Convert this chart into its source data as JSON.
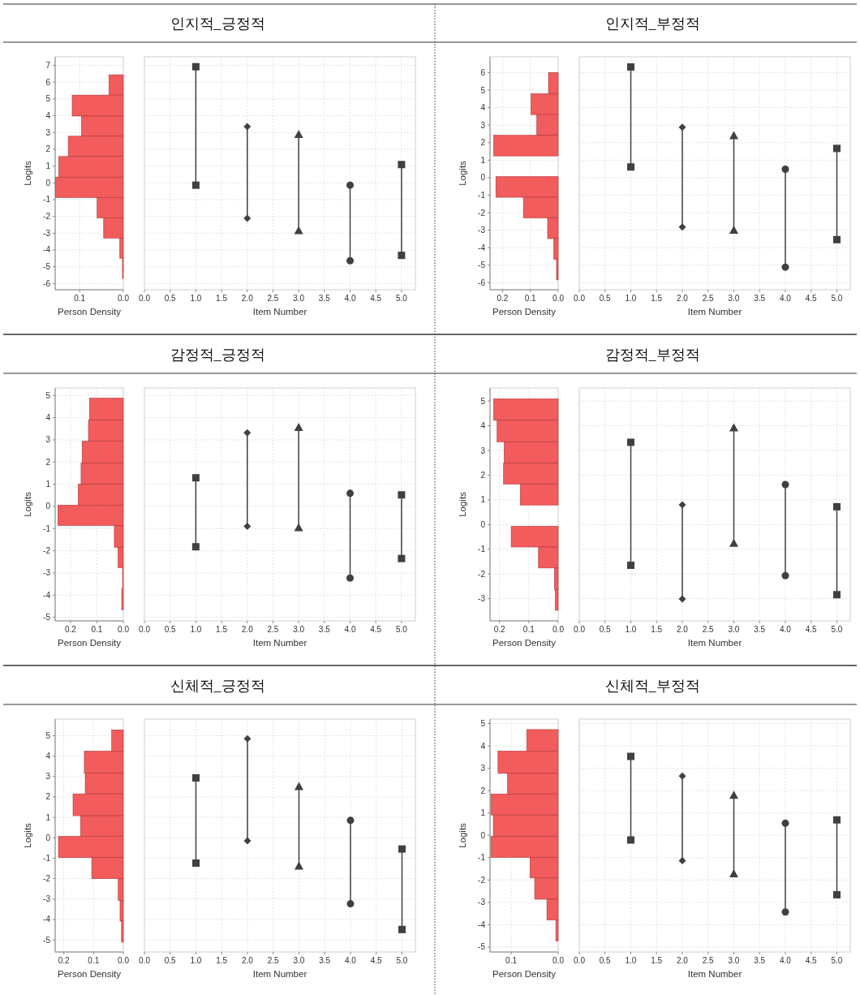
{
  "chart_data": [
    {
      "type": "histogram",
      "orientation": "horizontal",
      "color": "#f25c5c",
      "xlabel": "Person Density",
      "ylabel": "Logits",
      "grid": true,
      "bins": [
        6.44,
        5.23,
        3.98,
        2.78,
        1.57,
        0.34,
        -0.87,
        -2.09,
        -3.29,
        -4.49,
        -5.7
      ],
      "values": [
        0.033,
        0.117,
        0.096,
        0.126,
        0.148,
        0.155,
        0.06,
        0.045,
        0.008,
        0.002
      ],
      "xlim": [
        0.156,
        0
      ],
      "xticks": [
        0.1,
        {
          "value": 0,
          "label": "0.0"
        }
      ],
      "ylim": [
        -6.37,
        7.51
      ],
      "yticks": [
        -6,
        -5,
        -4,
        -3,
        -2,
        -1,
        0,
        1,
        2,
        3,
        4,
        5,
        6,
        7
      ]
    },
    {
      "type": "line",
      "title": "인지적_긍정적",
      "xlabel": "Item Number",
      "grid": true,
      "tick_labels": "x",
      "xlim": [
        0,
        5.27
      ],
      "ylim": [
        -6.37,
        7.51
      ],
      "yticks": [
        -6,
        -5,
        -4,
        -3,
        -2,
        -1,
        0,
        1,
        2,
        3,
        4,
        5,
        6,
        7
      ],
      "xticks": [
        {
          "value": 0,
          "label": "0.0"
        },
        0.5,
        {
          "value": 1,
          "label": "1.0"
        },
        1.5,
        {
          "value": 2,
          "label": "2.0"
        },
        2.5,
        {
          "value": 3,
          "label": "3.0"
        },
        3.5,
        {
          "value": 4,
          "label": "4.0"
        },
        4.5,
        {
          "value": 5,
          "label": "5.0"
        }
      ],
      "series": [
        {
          "color": "#404040",
          "marker": "square",
          "x": [
            1,
            1
          ],
          "values": [
            6.92,
            -0.14
          ]
        },
        {
          "color": "#404040",
          "marker": "diamond",
          "x": [
            2,
            2
          ],
          "values": [
            3.35,
            -2.12
          ]
        },
        {
          "color": "#404040",
          "marker": "triangle",
          "x": [
            3,
            3
          ],
          "values": [
            2.89,
            -2.84
          ]
        },
        {
          "color": "#404040",
          "marker": "circle",
          "x": [
            4,
            4
          ],
          "values": [
            -0.14,
            -4.64
          ]
        },
        {
          "color": "#404040",
          "marker": "square",
          "x": [
            5,
            5
          ],
          "values": [
            1.09,
            -4.32
          ]
        }
      ]
    },
    {
      "type": "histogram",
      "orientation": "horizontal",
      "color": "#f25c5c",
      "xlabel": "Person Density",
      "ylabel": "Logits",
      "grid": true,
      "bins": [
        6.0,
        4.79,
        3.6,
        2.42,
        1.24,
        0.06,
        -1.12,
        -2.3,
        -3.48,
        -4.66,
        -5.84
      ],
      "values": [
        0.035,
        0.098,
        0.077,
        0.232,
        0,
        0.224,
        0.125,
        0.038,
        0.016,
        0.006
      ],
      "xlim": [
        0.245,
        0
      ],
      "xticks": [
        0.2,
        0.1,
        {
          "value": 0,
          "label": "0.0"
        }
      ],
      "ylim": [
        -6.4,
        6.9
      ],
      "yticks": [
        -6,
        -5,
        -4,
        -3,
        -2,
        -1,
        0,
        1,
        2,
        3,
        4,
        5,
        6
      ]
    },
    {
      "type": "line",
      "title": "인지적_부정적",
      "xlabel": "Item Number",
      "grid": true,
      "tick_labels": "x",
      "xlim": [
        0,
        5.26
      ],
      "ylim": [
        -6.4,
        6.9
      ],
      "yticks": [
        -6,
        -5,
        -4,
        -3,
        -2,
        -1,
        0,
        1,
        2,
        3,
        4,
        5,
        6
      ],
      "xticks": [
        {
          "value": 0,
          "label": "0.0"
        },
        0.5,
        {
          "value": 1,
          "label": "1.0"
        },
        1.5,
        {
          "value": 2,
          "label": "2.0"
        },
        2.5,
        {
          "value": 3,
          "label": "3.0"
        },
        3.5,
        {
          "value": 4,
          "label": "4.0"
        },
        4.5,
        {
          "value": 5,
          "label": "5.0"
        }
      ],
      "series": [
        {
          "color": "#404040",
          "marker": "square",
          "x": [
            1,
            1
          ],
          "values": [
            6.32,
            0.61
          ]
        },
        {
          "color": "#404040",
          "marker": "diamond",
          "x": [
            2,
            2
          ],
          "values": [
            2.88,
            -2.82
          ]
        },
        {
          "color": "#404040",
          "marker": "triangle",
          "x": [
            3,
            3
          ],
          "values": [
            2.41,
            -2.99
          ]
        },
        {
          "color": "#404040",
          "marker": "circle",
          "x": [
            4,
            4
          ],
          "values": [
            0.48,
            -5.11
          ]
        },
        {
          "color": "#404040",
          "marker": "square",
          "x": [
            5,
            5
          ],
          "values": [
            1.67,
            -3.54
          ]
        }
      ]
    },
    {
      "type": "histogram",
      "orientation": "horizontal",
      "color": "#f25c5c",
      "xlabel": "Person Density",
      "ylabel": "Logits",
      "grid": true,
      "bins": [
        4.88,
        3.89,
        2.94,
        1.95,
        1.01,
        0.06,
        -0.86,
        -1.84,
        -2.76,
        -3.71,
        -4.66
      ],
      "values": [
        0.128,
        0.132,
        0.156,
        0.16,
        0.171,
        0.248,
        0.034,
        0.02,
        0.003,
        0.006
      ],
      "xlim": [
        0.258,
        0
      ],
      "xticks": [
        0.2,
        0.1,
        {
          "value": 0,
          "label": "0.0"
        }
      ],
      "ylim": [
        -5.16,
        5.34
      ],
      "yticks": [
        -5,
        -4,
        -3,
        -2,
        -1,
        0,
        1,
        2,
        3,
        4,
        5
      ]
    },
    {
      "type": "line",
      "title": "감정적_긍정적",
      "xlabel": "Item Number",
      "grid": true,
      "tick_labels": "x",
      "xlim": [
        0,
        5.27
      ],
      "ylim": [
        -5.16,
        5.34
      ],
      "yticks": [
        -5,
        -4,
        -3,
        -2,
        -1,
        0,
        1,
        2,
        3,
        4,
        5
      ],
      "xticks": [
        {
          "value": 0,
          "label": "0.0"
        },
        0.5,
        {
          "value": 1,
          "label": "1.0"
        },
        1.5,
        {
          "value": 2,
          "label": "2.0"
        },
        2.5,
        {
          "value": 3,
          "label": "3.0"
        },
        3.5,
        {
          "value": 4,
          "label": "4.0"
        },
        4.5,
        {
          "value": 5,
          "label": "5.0"
        }
      ],
      "series": [
        {
          "color": "#404040",
          "marker": "square",
          "x": [
            1,
            1
          ],
          "values": [
            1.29,
            -1.82
          ]
        },
        {
          "color": "#404040",
          "marker": "diamond",
          "x": [
            2,
            2
          ],
          "values": [
            3.32,
            -0.9
          ]
        },
        {
          "color": "#404040",
          "marker": "triangle",
          "x": [
            3,
            3
          ],
          "values": [
            3.57,
            -0.95
          ]
        },
        {
          "color": "#404040",
          "marker": "circle",
          "x": [
            4,
            4
          ],
          "values": [
            0.59,
            -3.23
          ]
        },
        {
          "color": "#404040",
          "marker": "square",
          "x": [
            5,
            5
          ],
          "values": [
            0.52,
            -2.35
          ]
        }
      ]
    },
    {
      "type": "histogram",
      "orientation": "horizontal",
      "color": "#f25c5c",
      "xlabel": "Person Density",
      "ylabel": "Logits",
      "grid": true,
      "bins": [
        5.09,
        4.22,
        3.35,
        2.48,
        1.64,
        0.79,
        -0.07,
        -0.91,
        -1.76,
        -2.63,
        -3.47
      ],
      "values": [
        0.22,
        0.208,
        0.184,
        0.186,
        0.129,
        0,
        0.16,
        0.067,
        0.013,
        0.01
      ],
      "xlim": [
        0.232,
        0
      ],
      "xticks": [
        0.2,
        0.1,
        {
          "value": 0,
          "label": "0.0"
        }
      ],
      "ylim": [
        -3.9,
        5.53
      ],
      "yticks": [
        -3,
        -2,
        -1,
        0,
        1,
        2,
        3,
        4,
        5
      ]
    },
    {
      "type": "line",
      "title": "감정적_부정적",
      "xlabel": "Item Number",
      "grid": true,
      "tick_labels": "x",
      "xlim": [
        0,
        5.26
      ],
      "ylim": [
        -3.9,
        5.53
      ],
      "yticks": [
        -3,
        -2,
        -1,
        0,
        1,
        2,
        3,
        4,
        5
      ],
      "xticks": [
        {
          "value": 0,
          "label": "0.0"
        },
        0.5,
        {
          "value": 1,
          "label": "1.0"
        },
        1.5,
        {
          "value": 2,
          "label": "2.0"
        },
        2.5,
        {
          "value": 3,
          "label": "3.0"
        },
        3.5,
        {
          "value": 4,
          "label": "4.0"
        },
        4.5,
        {
          "value": 5,
          "label": "5.0"
        }
      ],
      "series": [
        {
          "color": "#404040",
          "marker": "square",
          "x": [
            1,
            1
          ],
          "values": [
            3.33,
            -1.65
          ]
        },
        {
          "color": "#404040",
          "marker": "diamond",
          "x": [
            2,
            2
          ],
          "values": [
            0.8,
            -3.01
          ]
        },
        {
          "color": "#404040",
          "marker": "triangle",
          "x": [
            3,
            3
          ],
          "values": [
            3.92,
            -0.75
          ]
        },
        {
          "color": "#404040",
          "marker": "circle",
          "x": [
            4,
            4
          ],
          "values": [
            1.62,
            -2.07
          ]
        },
        {
          "color": "#404040",
          "marker": "square",
          "x": [
            5,
            5
          ],
          "values": [
            0.72,
            -2.84
          ]
        }
      ]
    },
    {
      "type": "histogram",
      "orientation": "horizontal",
      "color": "#f25c5c",
      "xlabel": "Person Density",
      "ylabel": "Logits",
      "grid": true,
      "bins": [
        5.28,
        4.24,
        3.16,
        2.15,
        1.08,
        0.07,
        -0.97,
        -2.0,
        -3.07,
        -4.08,
        -5.11
      ],
      "values": [
        0.039,
        0.131,
        0.128,
        0.169,
        0.144,
        0.218,
        0.106,
        0.017,
        0.011,
        0.006
      ],
      "xlim": [
        0.229,
        0
      ],
      "xticks": [
        0.2,
        0.1,
        {
          "value": 0,
          "label": "0.0"
        }
      ],
      "ylim": [
        -5.59,
        5.81
      ],
      "yticks": [
        -5,
        -4,
        -3,
        -2,
        -1,
        0,
        1,
        2,
        3,
        4,
        5
      ]
    },
    {
      "type": "line",
      "title": "신체적_긍정적",
      "xlabel": "Item Number",
      "grid": true,
      "tick_labels": "x",
      "xlim": [
        0,
        5.26
      ],
      "ylim": [
        -5.59,
        5.81
      ],
      "yticks": [
        -5,
        -4,
        -3,
        -2,
        -1,
        0,
        1,
        2,
        3,
        4,
        5
      ],
      "xticks": [
        {
          "value": 0,
          "label": "0.0"
        },
        0.5,
        {
          "value": 1,
          "label": "1.0"
        },
        1.5,
        {
          "value": 2,
          "label": "2.0"
        },
        2.5,
        {
          "value": 3,
          "label": "3.0"
        },
        3.5,
        {
          "value": 4,
          "label": "4.0"
        },
        4.5,
        {
          "value": 5,
          "label": "5.0"
        }
      ],
      "series": [
        {
          "color": "#404040",
          "marker": "square",
          "x": [
            1,
            1
          ],
          "values": [
            2.93,
            -1.24
          ]
        },
        {
          "color": "#404040",
          "marker": "diamond",
          "x": [
            2,
            2
          ],
          "values": [
            4.85,
            -0.15
          ]
        },
        {
          "color": "#404040",
          "marker": "triangle",
          "x": [
            3,
            3
          ],
          "values": [
            2.51,
            -1.38
          ]
        },
        {
          "color": "#404040",
          "marker": "circle",
          "x": [
            4,
            4
          ],
          "values": [
            0.85,
            -3.23
          ]
        },
        {
          "color": "#404040",
          "marker": "square",
          "x": [
            5,
            5
          ],
          "values": [
            -0.55,
            -4.49
          ]
        }
      ]
    },
    {
      "type": "histogram",
      "orientation": "horizontal",
      "color": "#f25c5c",
      "xlabel": "Person Density",
      "ylabel": "Logits",
      "grid": true,
      "bins": [
        4.73,
        3.77,
        2.77,
        1.85,
        0.91,
        -0.05,
        -0.99,
        -1.91,
        -2.86,
        -3.79,
        -4.73
      ],
      "values": [
        0.067,
        0.128,
        0.108,
        0.143,
        0.138,
        0.143,
        0.06,
        0.05,
        0.024,
        0.005
      ],
      "xlim": [
        0.145,
        0
      ],
      "xticks": [
        0.1,
        {
          "value": 0,
          "label": "0.0"
        }
      ],
      "ylim": [
        -5.22,
        5.2
      ],
      "yticks": [
        -5,
        -4,
        -3,
        -2,
        -1,
        0,
        1,
        2,
        3,
        4,
        5
      ]
    },
    {
      "type": "line",
      "title": "신체적_부정적",
      "xlabel": "Item Number",
      "grid": true,
      "tick_labels": "x",
      "xlim": [
        0,
        5.26
      ],
      "ylim": [
        -5.22,
        5.2
      ],
      "yticks": [
        -5,
        -4,
        -3,
        -2,
        -1,
        0,
        1,
        2,
        3,
        4,
        5
      ],
      "xticks": [
        {
          "value": 0,
          "label": "0.0"
        },
        0.5,
        {
          "value": 1,
          "label": "1.0"
        },
        1.5,
        {
          "value": 2,
          "label": "2.0"
        },
        2.5,
        {
          "value": 3,
          "label": "3.0"
        },
        3.5,
        {
          "value": 4,
          "label": "4.0"
        },
        4.5,
        {
          "value": 5,
          "label": "5.0"
        }
      ],
      "series": [
        {
          "color": "#404040",
          "marker": "square",
          "x": [
            1,
            1
          ],
          "values": [
            3.53,
            -0.21
          ]
        },
        {
          "color": "#404040",
          "marker": "diamond",
          "x": [
            2,
            2
          ],
          "values": [
            2.65,
            -1.14
          ]
        },
        {
          "color": "#404040",
          "marker": "triangle",
          "x": [
            3,
            3
          ],
          "values": [
            1.8,
            -1.72
          ]
        },
        {
          "color": "#404040",
          "marker": "circle",
          "x": [
            4,
            4
          ],
          "values": [
            0.54,
            -3.43
          ]
        },
        {
          "color": "#404040",
          "marker": "square",
          "x": [
            5,
            5
          ],
          "values": [
            0.69,
            -2.66
          ]
        }
      ]
    }
  ]
}
